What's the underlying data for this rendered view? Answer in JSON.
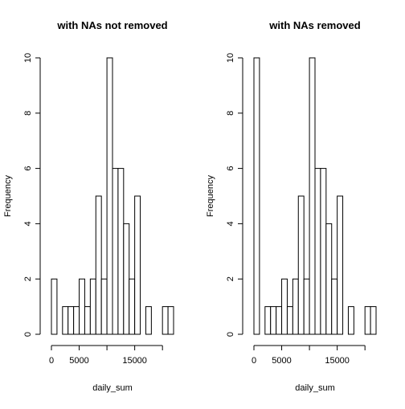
{
  "chart_data": [
    {
      "type": "bar",
      "title": "with NAs not removed",
      "xlabel": "daily_sum",
      "ylabel": "Frequency",
      "bin_width": 1000,
      "bin_edges": [
        0,
        22000
      ],
      "values": [
        2,
        0,
        1,
        1,
        1,
        2,
        1,
        2,
        5,
        2,
        10,
        6,
        6,
        4,
        2,
        5,
        0,
        1,
        0,
        0,
        1,
        1
      ],
      "xlim": [
        0,
        22000
      ],
      "ylim": [
        0,
        10
      ],
      "x_ticks": [
        0,
        5000,
        15000
      ],
      "y_ticks": [
        0,
        2,
        4,
        6,
        8,
        10
      ],
      "grid": false
    },
    {
      "type": "bar",
      "title": "with NAs removed",
      "xlabel": "daily_sum",
      "ylabel": "Frequency",
      "bin_width": 1000,
      "bin_edges": [
        0,
        22000
      ],
      "values": [
        10,
        0,
        1,
        1,
        1,
        2,
        1,
        2,
        5,
        2,
        10,
        6,
        6,
        4,
        2,
        5,
        0,
        1,
        0,
        0,
        1,
        1
      ],
      "xlim": [
        0,
        22000
      ],
      "ylim": [
        0,
        10
      ],
      "x_ticks": [
        0,
        5000,
        15000
      ],
      "y_ticks": [
        0,
        2,
        4,
        6,
        8,
        10
      ],
      "grid": false
    }
  ]
}
